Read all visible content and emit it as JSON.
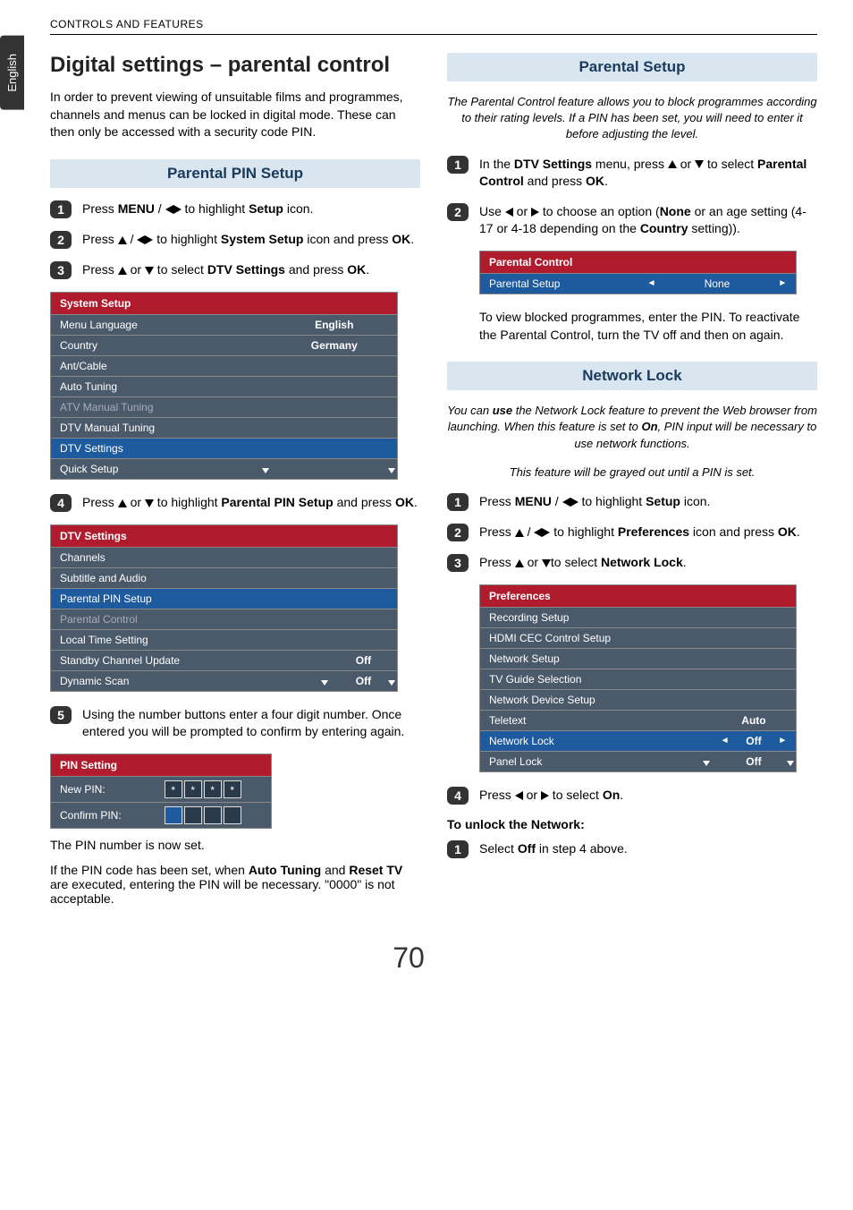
{
  "language_tab": "English",
  "header": "CONTROLS AND FEATURES",
  "page_title": "Digital settings – parental control",
  "intro": "In order to prevent viewing of unsuitable films and programmes, channels and menus can be locked in digital mode. These can then only be accessed with a security code PIN.",
  "page_number": "70",
  "left": {
    "section1_title": "Parental PIN Setup",
    "steps": {
      "s1a": "Press ",
      "s1b": " / ",
      "s1c": " to highlight ",
      "s1d": " icon.",
      "menu": "MENU",
      "setup": "Setup",
      "s2a": "Press ",
      "s2b": " / ",
      "s2c": " to highlight ",
      "s2d": " icon and press ",
      "s2e": ".",
      "system_setup": "System Setup",
      "ok": "OK",
      "s3a": "Press ",
      "s3b": " or ",
      "s3c": " to select ",
      "s3d": " and press ",
      "dtv": "DTV Settings",
      "s4a": "Press ",
      "s4b": " or ",
      "s4c": " to highlight ",
      "s4d": " and press ",
      "ppin": "Parental PIN Setup",
      "s5": "Using the number buttons enter a four digit number. Once entered you will be prompted to confirm by entering again.",
      "pin_now_set": "The PIN number is now set.",
      "pin_note_a": "If the PIN code has been set, when ",
      "pin_note_b": " and ",
      "pin_note_c": " are executed, entering the PIN will be necessary. \"0000\" is not acceptable.",
      "auto_tuning": "Auto Tuning",
      "reset_tv": "Reset TV"
    },
    "system_setup_table": {
      "title": "System Setup",
      "rows": [
        {
          "k": "Menu Language",
          "v": "English"
        },
        {
          "k": "Country",
          "v": "Germany"
        },
        {
          "k": "Ant/Cable",
          "v": ""
        },
        {
          "k": "Auto Tuning",
          "v": ""
        },
        {
          "k": "ATV Manual Tuning",
          "v": "",
          "dim": true
        },
        {
          "k": "DTV Manual Tuning",
          "v": ""
        },
        {
          "k": "DTV Settings",
          "v": "",
          "hl": true
        },
        {
          "k": "Quick Setup",
          "v": "",
          "scroll": true
        }
      ]
    },
    "dtv_table": {
      "title": "DTV Settings",
      "rows": [
        {
          "k": "Channels",
          "v": ""
        },
        {
          "k": "Subtitle and Audio",
          "v": ""
        },
        {
          "k": "Parental PIN Setup",
          "v": "",
          "hl": true
        },
        {
          "k": "Parental Control",
          "v": "",
          "dim": true
        },
        {
          "k": "Local Time Setting",
          "v": ""
        },
        {
          "k": "Standby Channel Update",
          "v": "Off"
        },
        {
          "k": "Dynamic Scan",
          "v": "Off",
          "scroll": true
        }
      ]
    },
    "pin_table": {
      "title": "PIN Setting",
      "new_pin": "New PIN:",
      "confirm_pin": "Confirm PIN:",
      "mask": "*"
    }
  },
  "right": {
    "section1_title": "Parental Setup",
    "note1": "The Parental Control feature allows you to block programmes according to their rating levels. If a PIN has been set, you will need to enter it before adjusting the level.",
    "r1a": "In the ",
    "r1b": " menu, press ",
    "r1c": " or ",
    "r1d": " to select ",
    "r1e": " and press ",
    "dtv": "DTV Settings",
    "pc": "Parental Control",
    "ok": "OK",
    "r2a": "Use ",
    "r2b": " or ",
    "r2c": " to choose an option (",
    "r2d": " or an age setting (4-17 or 4-18 depending on the ",
    "r2e": " setting)).",
    "none": "None",
    "country": "Country",
    "pc_table": {
      "title": "Parental Control",
      "row_label": "Parental Setup",
      "row_val": "None"
    },
    "view_blocked": "To view blocked programmes, enter the PIN. To reactivate the Parental Control, turn the TV off and then on again.",
    "section2_title": "Network Lock",
    "note2_a": "You can ",
    "note2_b": " the Network Lock feature to prevent the Web browser from launching. When this feature is set to ",
    "note2_c": ", PIN input will be necessary to use network functions.",
    "use": "use",
    "on": "On",
    "note3": "This feature will be grayed out until a PIN is set.",
    "n1a": "Press ",
    "n1b": " / ",
    "n1c": " to highlight ",
    "n1d": " icon.",
    "menu": "MENU",
    "setup": "Setup",
    "n2a": "Press ",
    "n2b": " / ",
    "n2c": " to highlight ",
    "n2d": " icon and press ",
    "prefs": "Preferences",
    "n3a": "Press ",
    "n3b": " or ",
    "n3c": "to select ",
    "nl": "Network Lock",
    "prefs_table": {
      "title": "Preferences",
      "rows": [
        {
          "k": "Recording Setup",
          "v": ""
        },
        {
          "k": "HDMI CEC Control Setup",
          "v": ""
        },
        {
          "k": "Network Setup",
          "v": ""
        },
        {
          "k": "TV Guide Selection",
          "v": ""
        },
        {
          "k": "Network Device Setup",
          "v": ""
        },
        {
          "k": "Teletext",
          "v": "Auto"
        },
        {
          "k": "Network Lock",
          "v": "Off",
          "sel": true
        },
        {
          "k": "Panel Lock",
          "v": "Off",
          "scroll": true
        }
      ]
    },
    "n4a": "Press ",
    "n4b": " or ",
    "n4c": " to select ",
    "unlock_h": "To unlock the Network:",
    "u1a": "Select ",
    "u1b": " in step 4 above.",
    "off": "Off"
  }
}
